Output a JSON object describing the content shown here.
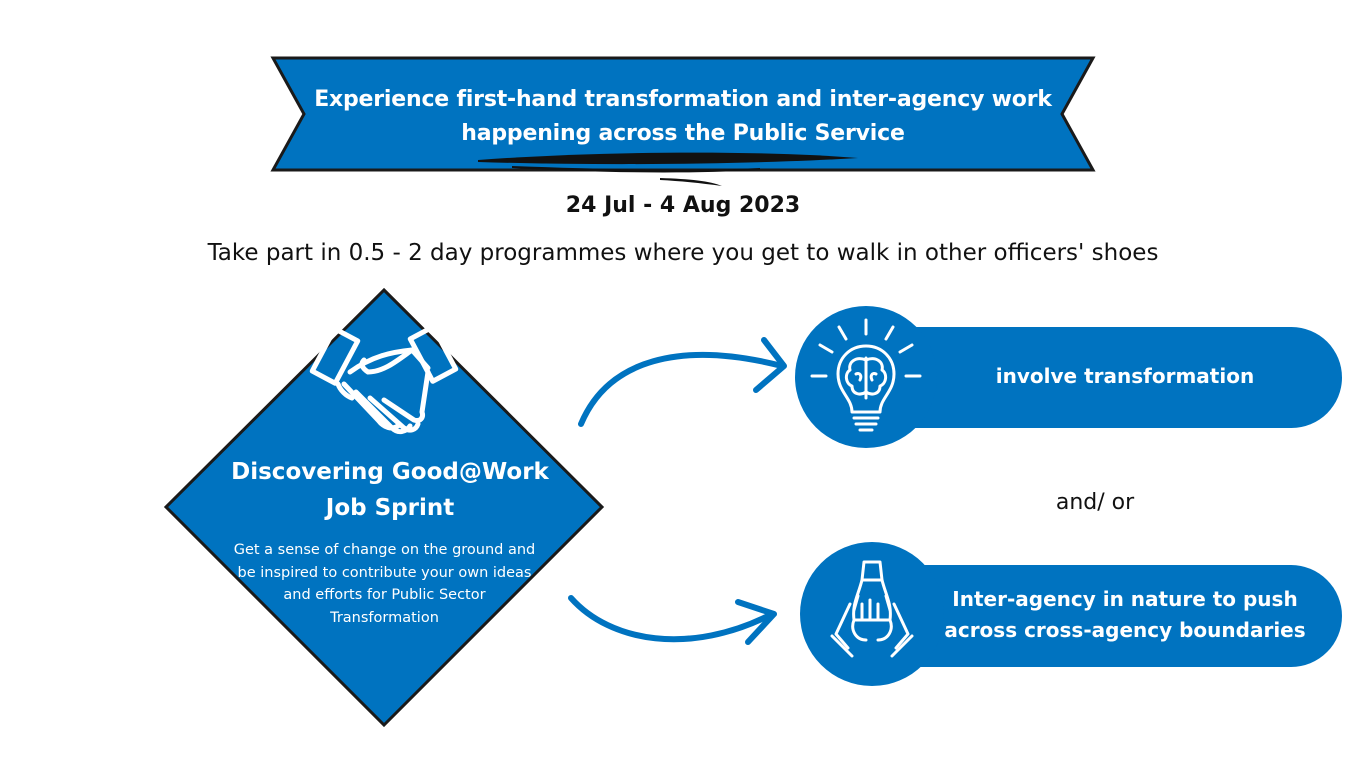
{
  "banner": {
    "title": "Experience first-hand transformation and inter-agency work happening across the Public Service"
  },
  "date_range": "24 Jul - 4 Aug 2023",
  "tagline": "Take part in 0.5 - 2 day programmes where you get to walk in other officers' shoes",
  "programme": {
    "title": "Discovering Good@Work Job Sprint",
    "description": "Get a sense of change on the ground and be inspired to contribute your own ideas and efforts for Public Sector Transformation",
    "icon": "handshake-icon"
  },
  "outcomes": [
    {
      "label": "involve transformation",
      "icon": "lightbulb-brain-icon"
    },
    {
      "label": "Inter-agency in nature to push across cross-agency boundaries",
      "icon": "stacked-hands-icon"
    }
  ],
  "connector_text": "and/ or",
  "colors": {
    "primary_blue": "#0073C0",
    "dark_outline": "#1a1a1a",
    "text_dark": "#111111",
    "white": "#ffffff"
  }
}
